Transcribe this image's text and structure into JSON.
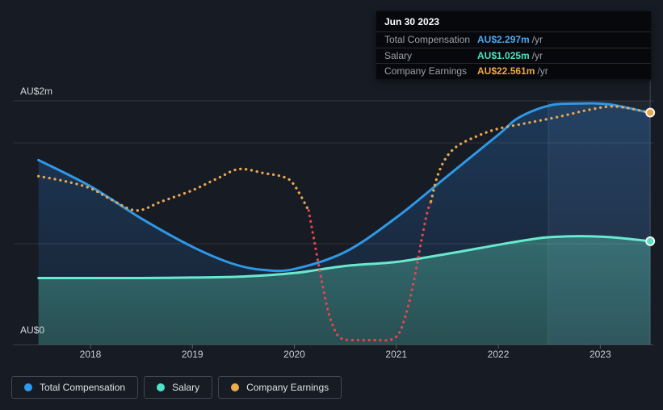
{
  "page": {
    "background": "#161b24"
  },
  "tooltip": {
    "date": "Jun 30 2023",
    "rows": [
      {
        "label": "Total Compensation",
        "value": "AU$2.297m",
        "suffix": "/yr",
        "color": "#4da9f2"
      },
      {
        "label": "Salary",
        "value": "AU$1.025m",
        "suffix": "/yr",
        "color": "#49e3c3"
      },
      {
        "label": "Company Earnings",
        "value": "AU$22.561m",
        "suffix": "/yr",
        "color": "#edaa43"
      }
    ]
  },
  "y_axis": {
    "top_label": "AU$2m",
    "bottom_label": "AU$0"
  },
  "x_axis": {
    "ticks": [
      "2018",
      "2019",
      "2020",
      "2021",
      "2022",
      "2023"
    ]
  },
  "legend": [
    {
      "label": "Total Compensation",
      "color": "#2e9bf0"
    },
    {
      "label": "Salary",
      "color": "#4ce5c6"
    },
    {
      "label": "Company Earnings",
      "color": "#ecab4f"
    }
  ],
  "chart_data": {
    "type": "area",
    "title": "",
    "x_unit": "year",
    "x_range": [
      2017.49,
      2023.49
    ],
    "x_ticks": [
      2018,
      2019,
      2020,
      2021,
      2022,
      2023
    ],
    "y_axis": {
      "unit": "AU$ millions per year",
      "min": 0,
      "max": 2.42,
      "gridlines_m": [
        0,
        1,
        2
      ],
      "top_border_m": 2.416,
      "labels": {
        "0": "AU$0",
        "2": "AU$2m"
      }
    },
    "highlight_span_years": [
      2022.49,
      2023.49
    ],
    "series": [
      {
        "name": "Total Compensation",
        "color": "#2f97e6",
        "style": "line-area",
        "unit": "AU$m/yr",
        "value_jun_30_2023": "AU$2.297m /yr",
        "points": [
          [
            2017.49,
            1.83
          ],
          [
            2018,
            1.57
          ],
          [
            2018.5,
            1.25
          ],
          [
            2019,
            0.97
          ],
          [
            2019.4,
            0.8
          ],
          [
            2019.7,
            0.74
          ],
          [
            2020,
            0.75
          ],
          [
            2020.5,
            0.92
          ],
          [
            2021,
            1.26
          ],
          [
            2021.5,
            1.67
          ],
          [
            2022,
            2.08
          ],
          [
            2022.2,
            2.25
          ],
          [
            2022.5,
            2.37
          ],
          [
            2022.8,
            2.39
          ],
          [
            2023.1,
            2.38
          ],
          [
            2023.49,
            2.297
          ]
        ]
      },
      {
        "name": "Salary",
        "color": "#69e9ce",
        "style": "line-area",
        "unit": "AU$m/yr",
        "value_jun_30_2023": "AU$1.025m /yr",
        "points": [
          [
            2017.49,
            0.66
          ],
          [
            2018,
            0.66
          ],
          [
            2018.5,
            0.66
          ],
          [
            2019,
            0.665
          ],
          [
            2019.5,
            0.675
          ],
          [
            2020,
            0.71
          ],
          [
            2020.5,
            0.78
          ],
          [
            2021,
            0.82
          ],
          [
            2021.5,
            0.9
          ],
          [
            2022,
            0.99
          ],
          [
            2022.3,
            1.04
          ],
          [
            2022.5,
            1.065
          ],
          [
            2022.8,
            1.075
          ],
          [
            2023.1,
            1.065
          ],
          [
            2023.49,
            1.025
          ]
        ]
      },
      {
        "name": "Company Earnings",
        "style": "dotted-line",
        "axis": "secondary (unlabeled)",
        "positive_color": "#e9a74e",
        "negative_color": "#e3454e",
        "value_jun_30_2023": "AU$22.561m /yr",
        "display_segments": [
          {
            "sign": "positive",
            "points": [
              [
                2017.49,
                1.67
              ],
              [
                2017.75,
                1.62
              ],
              [
                2018,
                1.55
              ],
              [
                2018.2,
                1.44
              ],
              [
                2018.45,
                1.33
              ],
              [
                2018.7,
                1.42
              ],
              [
                2019,
                1.53
              ],
              [
                2019.25,
                1.65
              ],
              [
                2019.46,
                1.74
              ],
              [
                2019.7,
                1.7
              ],
              [
                2019.9,
                1.66
              ],
              [
                2020,
                1.58
              ],
              [
                2020.14,
                1.33
              ]
            ]
          },
          {
            "sign": "negative",
            "points": [
              [
                2020.14,
                1.33
              ],
              [
                2020.2,
                1.0
              ],
              [
                2020.27,
                0.62
              ],
              [
                2020.34,
                0.3
              ],
              [
                2020.42,
                0.1
              ],
              [
                2020.5,
                0.05
              ],
              [
                2020.65,
                0.045
              ],
              [
                2020.8,
                0.045
              ],
              [
                2020.95,
                0.05
              ],
              [
                2021.03,
                0.12
              ],
              [
                2021.1,
                0.32
              ],
              [
                2021.17,
                0.62
              ],
              [
                2021.24,
                1.0
              ],
              [
                2021.3,
                1.3
              ],
              [
                2021.34,
                1.42
              ]
            ]
          },
          {
            "sign": "positive",
            "points": [
              [
                2021.34,
                1.42
              ],
              [
                2021.4,
                1.66
              ],
              [
                2021.48,
                1.84
              ],
              [
                2021.6,
                1.97
              ],
              [
                2021.8,
                2.07
              ],
              [
                2022,
                2.14
              ],
              [
                2022.3,
                2.2
              ],
              [
                2022.6,
                2.26
              ],
              [
                2022.9,
                2.33
              ],
              [
                2023.15,
                2.36
              ],
              [
                2023.49,
                2.3
              ]
            ]
          }
        ]
      }
    ],
    "end_markers": [
      {
        "series": "Company Earnings",
        "x": 2023.49,
        "display_y": 2.3,
        "color": "#eba44b"
      },
      {
        "series": "Salary",
        "x": 2023.49,
        "display_y": 1.025,
        "color": "#50e2c4"
      }
    ],
    "legend_position": "bottom-left",
    "grid": true
  }
}
